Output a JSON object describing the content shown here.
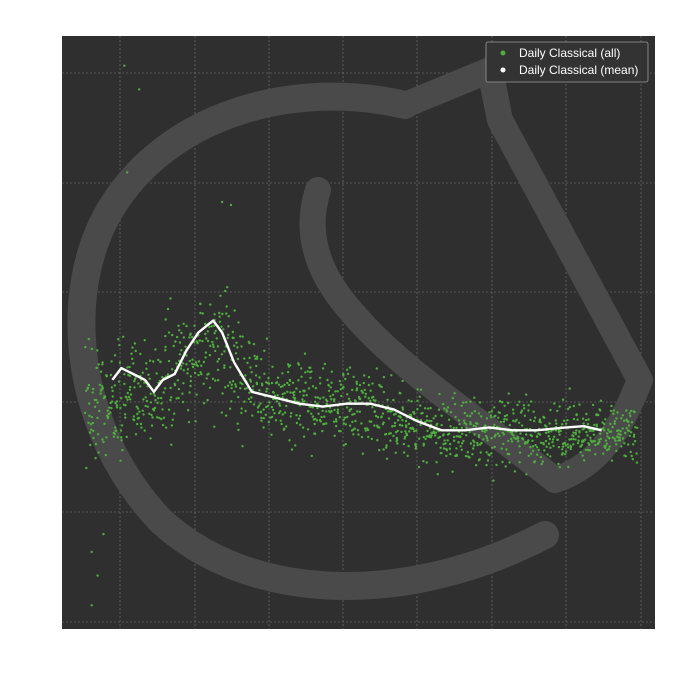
{
  "chart_data": {
    "type": "scatter",
    "title": "",
    "xlabel": "",
    "ylabel": "",
    "grid": true,
    "legend_position": "top-right",
    "background_color": "#2f2f2f",
    "grid_color": "#7a7a7a",
    "watermark": "chess-knight-logo",
    "series": [
      {
        "name": "Daily Classical (all)",
        "kind": "scatter",
        "color": "#4fae3e",
        "note": "dense cloud of daily points; approximate envelope below",
        "envelope": [
          {
            "x": 0.05,
            "y_mean": 0.38,
            "spread": 0.07
          },
          {
            "x": 0.15,
            "y_mean": 0.4,
            "spread": 0.06
          },
          {
            "x": 0.25,
            "y_mean": 0.47,
            "spread": 0.07
          },
          {
            "x": 0.35,
            "y_mean": 0.39,
            "spread": 0.05
          },
          {
            "x": 0.5,
            "y_mean": 0.37,
            "spread": 0.04
          },
          {
            "x": 0.65,
            "y_mean": 0.33,
            "spread": 0.035
          },
          {
            "x": 0.8,
            "y_mean": 0.33,
            "spread": 0.035
          },
          {
            "x": 0.95,
            "y_mean": 0.33,
            "spread": 0.03
          }
        ],
        "outliers": [
          {
            "x": 0.105,
            "y": 0.95
          },
          {
            "x": 0.13,
            "y": 0.91
          },
          {
            "x": 0.11,
            "y": 0.77
          },
          {
            "x": 0.05,
            "y": 0.04
          },
          {
            "x": 0.06,
            "y": 0.09
          },
          {
            "x": 0.07,
            "y": 0.16
          },
          {
            "x": 0.05,
            "y": 0.13
          },
          {
            "x": 0.27,
            "y": 0.72
          },
          {
            "x": 0.285,
            "y": 0.715
          }
        ]
      },
      {
        "name": "Daily Classical (mean)",
        "kind": "line",
        "color": "#ffffff",
        "points": [
          [
            0.085,
            0.42
          ],
          [
            0.1,
            0.44
          ],
          [
            0.12,
            0.43
          ],
          [
            0.14,
            0.42
          ],
          [
            0.155,
            0.4
          ],
          [
            0.17,
            0.42
          ],
          [
            0.19,
            0.43
          ],
          [
            0.21,
            0.47
          ],
          [
            0.23,
            0.5
          ],
          [
            0.255,
            0.52
          ],
          [
            0.27,
            0.5
          ],
          [
            0.29,
            0.45
          ],
          [
            0.32,
            0.4
          ],
          [
            0.36,
            0.39
          ],
          [
            0.4,
            0.38
          ],
          [
            0.44,
            0.375
          ],
          [
            0.48,
            0.38
          ],
          [
            0.52,
            0.38
          ],
          [
            0.56,
            0.37
          ],
          [
            0.6,
            0.35
          ],
          [
            0.64,
            0.335
          ],
          [
            0.68,
            0.335
          ],
          [
            0.72,
            0.34
          ],
          [
            0.76,
            0.335
          ],
          [
            0.8,
            0.335
          ],
          [
            0.85,
            0.34
          ],
          [
            0.88,
            0.342
          ],
          [
            0.91,
            0.335
          ]
        ]
      }
    ]
  }
}
